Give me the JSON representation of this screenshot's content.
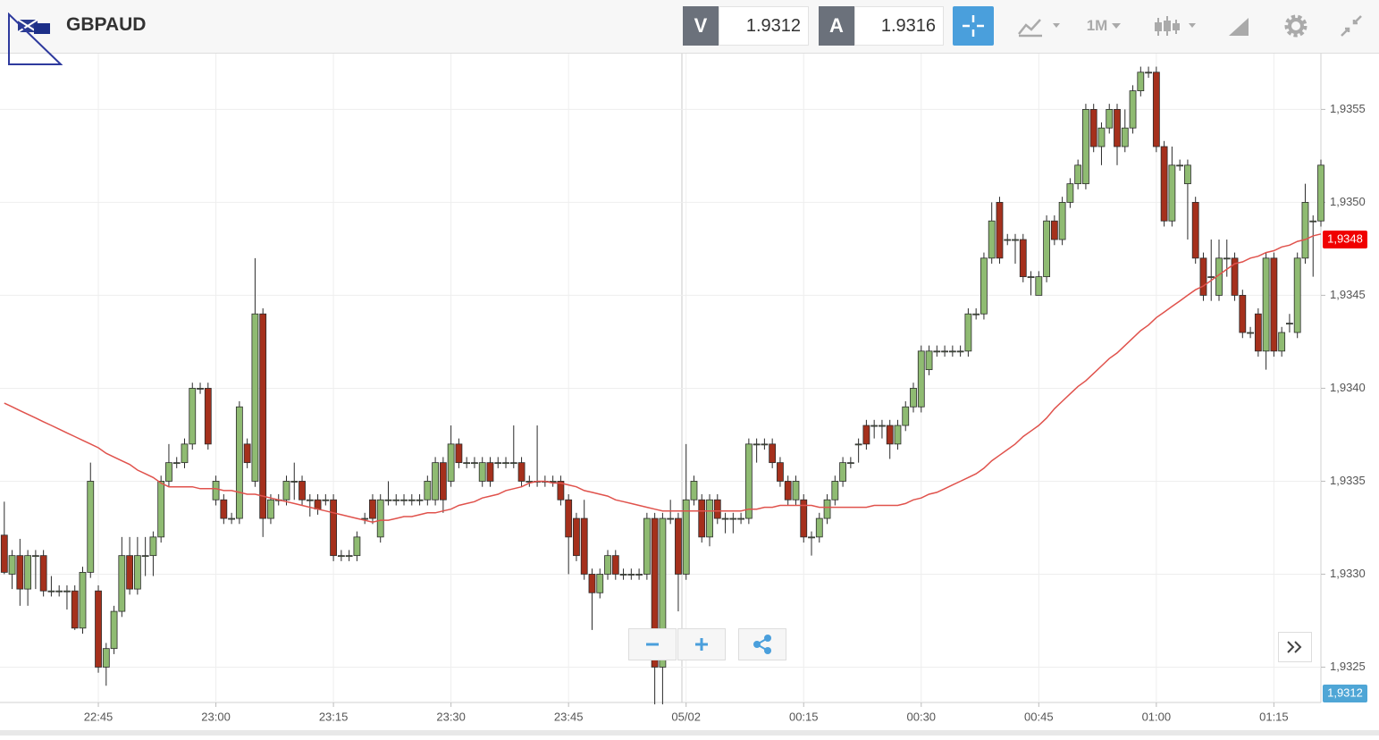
{
  "toolbar": {
    "symbol": "GBPAUD",
    "bid_label": "V",
    "bid": "1.9312",
    "ask_label": "A",
    "ask": "1.9316",
    "timeframe": "1M"
  },
  "chart_data": {
    "type": "candlestick",
    "up_color": "#8fbb72",
    "down_color": "#a5301c",
    "outline_color": "#2b2b2b",
    "ylim": [
      1.93231,
      1.9358
    ],
    "yticks": [
      {
        "value": 1.9325,
        "label": "1,9325"
      },
      {
        "value": 1.933,
        "label": "1,9330"
      },
      {
        "value": 1.9335,
        "label": "1,9335"
      },
      {
        "value": 1.934,
        "label": "1,9340"
      },
      {
        "value": 1.9345,
        "label": "1,9345"
      },
      {
        "value": 1.935,
        "label": "1,9350"
      },
      {
        "value": 1.9355,
        "label": "1,9355"
      }
    ],
    "grid": true,
    "last_price": {
      "value": 1.9348,
      "label": "1,9348",
      "color": "#f00000"
    },
    "bid_marker": {
      "label": "1,9312",
      "color": "#4fa6d6"
    },
    "categories": [
      null,
      null,
      null,
      null,
      null,
      null,
      null,
      null,
      null,
      null,
      null,
      null,
      "22:45",
      null,
      null,
      null,
      null,
      null,
      null,
      null,
      null,
      null,
      null,
      null,
      null,
      null,
      null,
      "23:00",
      null,
      null,
      null,
      null,
      null,
      null,
      null,
      null,
      null,
      null,
      null,
      null,
      null,
      null,
      "23:15",
      null,
      null,
      null,
      null,
      null,
      null,
      null,
      null,
      null,
      null,
      null,
      null,
      null,
      null,
      "23:30",
      null,
      null,
      null,
      null,
      null,
      null,
      null,
      null,
      null,
      null,
      null,
      null,
      null,
      null,
      "23:45",
      null,
      null,
      null,
      null,
      null,
      null,
      null,
      null,
      null,
      null,
      null,
      null,
      null,
      null,
      "05/02",
      null,
      null,
      null,
      null,
      null,
      null,
      null,
      null,
      null,
      null,
      null,
      null,
      null,
      null,
      "00:15",
      null,
      null,
      null,
      null,
      null,
      null,
      null,
      null,
      null,
      null,
      null,
      null,
      null,
      null,
      "00:30",
      null,
      null,
      null,
      null,
      null,
      null,
      null,
      null,
      null,
      null,
      null,
      null,
      null,
      null,
      "00:45",
      null,
      null,
      null,
      null,
      null,
      null,
      null,
      null,
      null,
      null,
      null,
      null,
      null,
      null,
      "01:00",
      null,
      null,
      null,
      null,
      null,
      null,
      null,
      null,
      null,
      null,
      null,
      null,
      null,
      null,
      "01:15",
      null,
      null,
      null,
      null,
      null,
      null
    ],
    "open": [
      1.93321,
      1.933,
      1.9331,
      1.93292,
      1.9331,
      1.9331,
      1.93291,
      1.93291,
      1.93291,
      1.93291,
      1.93271,
      1.93301,
      1.93291,
      1.9325,
      1.9326,
      1.9328,
      1.9331,
      1.93292,
      1.9331,
      1.9331,
      1.9332,
      1.9335,
      1.9336,
      1.9336,
      1.9337,
      1.934,
      1.934,
      1.9334,
      1.9334,
      1.9333,
      1.9333,
      1.9337,
      1.9335,
      1.9344,
      1.9333,
      1.9334,
      1.9334,
      1.9335,
      1.9335,
      1.9334,
      1.9334,
      1.9334,
      1.9334,
      1.9331,
      1.9331,
      1.9331,
      1.9333,
      1.9334,
      1.9332,
      1.9334,
      1.9334,
      1.9334,
      1.9334,
      1.9334,
      1.9334,
      1.9334,
      1.9336,
      1.9335,
      1.9337,
      1.9336,
      1.9336,
      1.9335,
      1.9336,
      1.9336,
      1.9336,
      1.9336,
      1.9336,
      1.9335,
      1.9335,
      1.9335,
      1.9335,
      1.9335,
      1.9334,
      1.9333,
      1.9333,
      1.933,
      1.9329,
      1.933,
      1.9331,
      1.933,
      1.933,
      1.933,
      1.933,
      1.9333,
      1.9325,
      1.9333,
      1.9333,
      1.933,
      1.9334,
      1.9334,
      1.9332,
      1.9334,
      1.9333,
      1.9333,
      1.9333,
      1.9333,
      1.9337,
      1.9337,
      1.9337,
      1.9336,
      1.9335,
      1.9334,
      1.9334,
      1.9332,
      1.9332,
      1.9333,
      1.9334,
      1.9335,
      1.9336,
      1.9337,
      1.9338,
      1.9338,
      1.9338,
      1.9338,
      1.9337,
      1.9338,
      1.9339,
      1.9339,
      1.9341,
      1.9342,
      1.9342,
      1.9342,
      1.9342,
      1.9342,
      1.9344,
      1.9344,
      1.9347,
      1.935,
      1.9348,
      1.9348,
      1.9348,
      1.9346,
      1.9345,
      1.9346,
      1.9349,
      1.9348,
      1.935,
      1.9351,
      1.9351,
      1.9355,
      1.9353,
      1.9354,
      1.9355,
      1.9353,
      1.9354,
      1.9356,
      1.9357,
      1.9357,
      1.9353,
      1.9349,
      1.9352,
      1.9351,
      1.935,
      1.9347,
      1.9346,
      1.9345,
      1.9347,
      1.9347,
      1.9345,
      1.9343,
      1.9344,
      1.9342,
      1.9347,
      1.9342,
      1.93435,
      1.9343,
      1.9347,
      1.9349,
      1.9349
    ],
    "high": [
      1.93339,
      1.93313,
      1.93319,
      1.93313,
      1.93313,
      1.93313,
      1.93299,
      1.93294,
      1.93294,
      1.93294,
      1.93304,
      1.9336,
      1.93294,
      1.93263,
      1.93283,
      1.9332,
      1.9332,
      1.9332,
      1.9332,
      1.93323,
      1.93353,
      1.9337,
      1.93363,
      1.93373,
      1.93403,
      1.93403,
      1.93403,
      1.93353,
      1.93343,
      1.93333,
      1.93393,
      1.93373,
      1.9347,
      1.93443,
      1.93343,
      1.93343,
      1.93353,
      1.9336,
      1.93353,
      1.93343,
      1.93343,
      1.93343,
      1.93343,
      1.93313,
      1.93313,
      1.93323,
      1.93333,
      1.93343,
      1.93343,
      1.9335,
      1.93343,
      1.93343,
      1.93343,
      1.93343,
      1.93353,
      1.93363,
      1.93363,
      1.9338,
      1.93373,
      1.93363,
      1.93363,
      1.93363,
      1.93363,
      1.93363,
      1.93363,
      1.9338,
      1.93363,
      1.93353,
      1.9338,
      1.93353,
      1.93353,
      1.93353,
      1.93343,
      1.93333,
      1.9334,
      1.93303,
      1.93303,
      1.93313,
      1.93313,
      1.93303,
      1.93303,
      1.93303,
      1.93333,
      1.93333,
      1.93333,
      1.9334,
      1.93333,
      1.9337,
      1.93353,
      1.93343,
      1.93343,
      1.93343,
      1.93333,
      1.93333,
      1.93333,
      1.93373,
      1.93373,
      1.93373,
      1.93373,
      1.93363,
      1.93353,
      1.93353,
      1.93343,
      1.93323,
      1.93333,
      1.93343,
      1.93353,
      1.93363,
      1.93363,
      1.93373,
      1.93383,
      1.93383,
      1.93383,
      1.93383,
      1.93383,
      1.93393,
      1.93403,
      1.93423,
      1.93423,
      1.93423,
      1.93423,
      1.93423,
      1.93423,
      1.93443,
      1.93443,
      1.93473,
      1.935,
      1.93503,
      1.93483,
      1.93483,
      1.93483,
      1.93463,
      1.93463,
      1.93493,
      1.93493,
      1.93503,
      1.93513,
      1.93523,
      1.93553,
      1.93553,
      1.93543,
      1.93553,
      1.93553,
      1.9355,
      1.93563,
      1.93573,
      1.93573,
      1.93573,
      1.93533,
      1.9353,
      1.93523,
      1.93523,
      1.93503,
      1.93473,
      1.9348,
      1.9348,
      1.9348,
      1.93473,
      1.93453,
      1.93433,
      1.93443,
      1.93473,
      1.93473,
      1.93433,
      1.9344,
      1.93473,
      1.9351,
      1.93493,
      1.93523
    ],
    "low": [
      1.933,
      1.93292,
      1.93283,
      1.93283,
      1.93292,
      1.93288,
      1.93288,
      1.93288,
      1.93281,
      1.9327,
      1.93268,
      1.93298,
      1.93247,
      1.9324,
      1.93257,
      1.93277,
      1.93289,
      1.93289,
      1.93299,
      1.93299,
      1.93317,
      1.93347,
      1.93357,
      1.93357,
      1.93367,
      1.93397,
      1.93367,
      1.93337,
      1.93327,
      1.93327,
      1.93327,
      1.93357,
      1.93347,
      1.9332,
      1.93327,
      1.93337,
      1.93337,
      1.9334,
      1.93337,
      1.93331,
      1.93332,
      1.93337,
      1.93307,
      1.93307,
      1.93307,
      1.93307,
      1.93327,
      1.93327,
      1.93317,
      1.93337,
      1.93337,
      1.93337,
      1.93337,
      1.93337,
      1.93337,
      1.93337,
      1.93333,
      1.93347,
      1.93357,
      1.93357,
      1.93357,
      1.93347,
      1.93347,
      1.93357,
      1.93357,
      1.93357,
      1.93347,
      1.93347,
      1.93347,
      1.93347,
      1.93347,
      1.93337,
      1.933,
      1.93307,
      1.93297,
      1.9327,
      1.93287,
      1.93297,
      1.93297,
      1.93297,
      1.93297,
      1.93297,
      1.93297,
      1.9323,
      1.9323,
      1.93327,
      1.9328,
      1.93297,
      1.93337,
      1.93317,
      1.93315,
      1.93327,
      1.93322,
      1.93322,
      1.93327,
      1.93327,
      1.9336,
      1.93367,
      1.93357,
      1.93347,
      1.93337,
      1.93337,
      1.93317,
      1.9331,
      1.93317,
      1.93327,
      1.93337,
      1.93347,
      1.93357,
      1.9336,
      1.93367,
      1.93373,
      1.93373,
      1.93362,
      1.93367,
      1.93377,
      1.93387,
      1.93387,
      1.93407,
      1.93417,
      1.93417,
      1.93417,
      1.93417,
      1.93417,
      1.93437,
      1.93437,
      1.93467,
      1.93467,
      1.93477,
      1.93467,
      1.93457,
      1.9345,
      1.9345,
      1.93457,
      1.93477,
      1.93477,
      1.93497,
      1.93507,
      1.93507,
      1.93527,
      1.9352,
      1.93537,
      1.9352,
      1.93527,
      1.93537,
      1.93557,
      1.93567,
      1.93527,
      1.93487,
      1.93487,
      1.93517,
      1.9348,
      1.93467,
      1.93447,
      1.93447,
      1.93447,
      1.9346,
      1.93447,
      1.93427,
      1.93427,
      1.93417,
      1.9341,
      1.93417,
      1.93417,
      1.9343,
      1.93427,
      1.93467,
      1.9346,
      1.93487
    ],
    "close": [
      1.93301,
      1.9331,
      1.93292,
      1.9331,
      1.9331,
      1.93291,
      1.93291,
      1.93291,
      1.93291,
      1.93271,
      1.93301,
      1.9335,
      1.9325,
      1.9326,
      1.9328,
      1.9331,
      1.93292,
      1.9331,
      1.9331,
      1.9332,
      1.9335,
      1.9336,
      1.9336,
      1.9337,
      1.934,
      1.934,
      1.9337,
      1.9335,
      1.9333,
      1.9333,
      1.9339,
      1.9336,
      1.9344,
      1.9333,
      1.9334,
      1.9334,
      1.9335,
      1.9335,
      1.9334,
      1.9334,
      1.93335,
      1.9334,
      1.9331,
      1.9331,
      1.9331,
      1.9332,
      1.9333,
      1.9333,
      1.9334,
      1.9334,
      1.9334,
      1.9334,
      1.9334,
      1.9334,
      1.9335,
      1.9336,
      1.9334,
      1.9337,
      1.9336,
      1.9336,
      1.9336,
      1.9336,
      1.9335,
      1.9336,
      1.9336,
      1.9336,
      1.9335,
      1.9335,
      1.9335,
      1.9335,
      1.9335,
      1.9334,
      1.9332,
      1.9331,
      1.933,
      1.9329,
      1.933,
      1.9331,
      1.933,
      1.933,
      1.933,
      1.933,
      1.9333,
      1.9325,
      1.9333,
      1.9333,
      1.933,
      1.9334,
      1.9335,
      1.9332,
      1.9334,
      1.9333,
      1.9333,
      1.9333,
      1.9333,
      1.9337,
      1.9337,
      1.9337,
      1.9336,
      1.9335,
      1.9334,
      1.9335,
      1.9332,
      1.9332,
      1.9333,
      1.9334,
      1.9335,
      1.9336,
      1.9336,
      1.9337,
      1.9337,
      1.9338,
      1.9338,
      1.9337,
      1.9338,
      1.9339,
      1.934,
      1.9342,
      1.9342,
      1.9342,
      1.9342,
      1.9342,
      1.9342,
      1.9344,
      1.9344,
      1.9347,
      1.9349,
      1.9347,
      1.9348,
      1.9348,
      1.9346,
      1.9346,
      1.9346,
      1.9349,
      1.9348,
      1.935,
      1.9351,
      1.9352,
      1.9355,
      1.9353,
      1.9354,
      1.9355,
      1.9353,
      1.9354,
      1.9356,
      1.9357,
      1.9357,
      1.9353,
      1.9349,
      1.9352,
      1.9352,
      1.9352,
      1.9347,
      1.9345,
      1.9346,
      1.9347,
      1.9347,
      1.9345,
      1.9343,
      1.9343,
      1.9342,
      1.9347,
      1.9342,
      1.9343,
      1.93435,
      1.9347,
      1.935,
      1.9349,
      1.9352
    ],
    "lines": [
      {
        "color": "#e0524c",
        "values": [
          1.93392,
          1.9339,
          1.93388,
          1.93386,
          1.93384,
          1.93382,
          1.9338,
          1.93378,
          1.93376,
          1.93374,
          1.93372,
          1.9337,
          1.93368,
          1.93365,
          1.93363,
          1.93361,
          1.93359,
          1.93356,
          1.93354,
          1.93352,
          1.93349,
          1.93347,
          1.93347,
          1.93347,
          1.93347,
          1.93346,
          1.93346,
          1.93346,
          1.93345,
          1.93345,
          1.93344,
          1.93343,
          1.93343,
          1.93342,
          1.93341,
          1.9334,
          1.93339,
          1.93338,
          1.93337,
          1.93336,
          1.93335,
          1.93334,
          1.93333,
          1.93332,
          1.93331,
          1.9333,
          1.93329,
          1.93328,
          1.93329,
          1.93329,
          1.9333,
          1.93331,
          1.93331,
          1.93332,
          1.93333,
          1.93333,
          1.93334,
          1.93335,
          1.93337,
          1.93338,
          1.93339,
          1.93341,
          1.93342,
          1.93343,
          1.93345,
          1.93346,
          1.93347,
          1.93349,
          1.9335,
          1.9335,
          1.93349,
          1.93349,
          1.93348,
          1.93347,
          1.93345,
          1.93344,
          1.93343,
          1.93342,
          1.9334,
          1.93339,
          1.93338,
          1.93337,
          1.93336,
          1.93335,
          1.93334,
          1.93334,
          1.93334,
          1.93334,
          1.93334,
          1.93334,
          1.93334,
          1.93334,
          1.93334,
          1.93334,
          1.93334,
          1.93335,
          1.93335,
          1.93336,
          1.93336,
          1.93337,
          1.93337,
          1.93337,
          1.93337,
          1.93337,
          1.93336,
          1.93336,
          1.93336,
          1.93336,
          1.93336,
          1.93336,
          1.93336,
          1.93337,
          1.93337,
          1.93337,
          1.93337,
          1.93338,
          1.9334,
          1.93341,
          1.93343,
          1.93344,
          1.93346,
          1.93348,
          1.9335,
          1.93352,
          1.93354,
          1.93357,
          1.93361,
          1.93364,
          1.93367,
          1.9337,
          1.93374,
          1.93377,
          1.9338,
          1.93384,
          1.93389,
          1.93393,
          1.93397,
          1.93401,
          1.93404,
          1.93408,
          1.93412,
          1.93416,
          1.93419,
          1.93423,
          1.93427,
          1.93431,
          1.93434,
          1.93438,
          1.93441,
          1.93444,
          1.93447,
          1.9345,
          1.93453,
          1.93455,
          1.93458,
          1.93461,
          1.93464,
          1.93467,
          1.93468,
          1.9347,
          1.93471,
          1.93473,
          1.93474,
          1.93476,
          1.93477,
          1.93479,
          1.9348,
          1.93482,
          1.93483
        ]
      }
    ]
  }
}
